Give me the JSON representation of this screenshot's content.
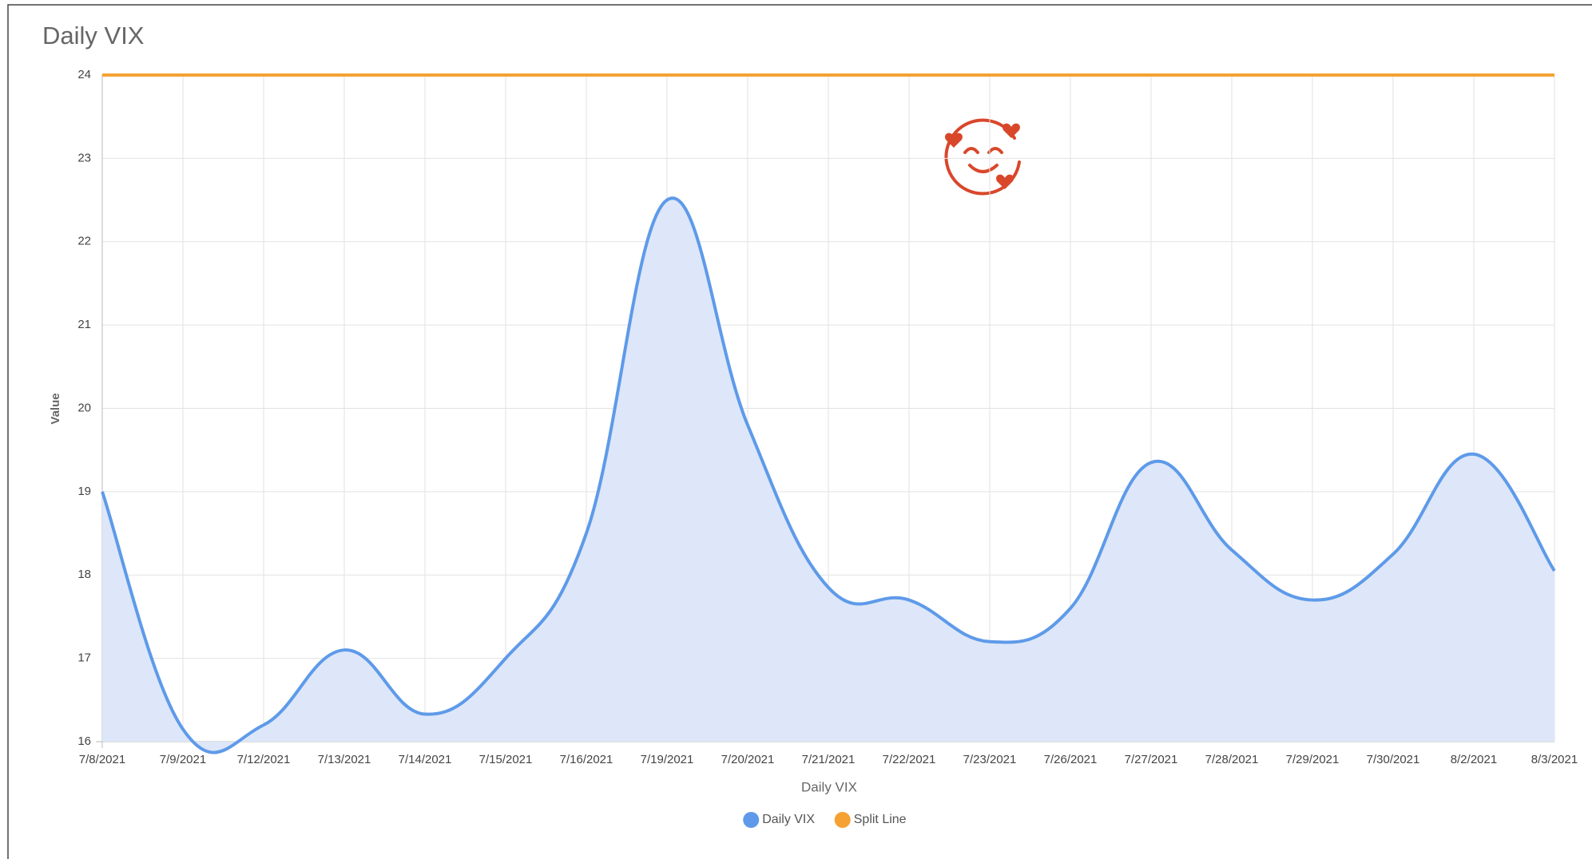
{
  "chart_data": {
    "type": "line",
    "title": "Daily VIX",
    "xlabel": "Daily VIX",
    "ylabel": "Value",
    "categories": [
      "7/8/2021",
      "7/9/2021",
      "7/12/2021",
      "7/13/2021",
      "7/14/2021",
      "7/15/2021",
      "7/16/2021",
      "7/19/2021",
      "7/20/2021",
      "7/21/2021",
      "7/22/2021",
      "7/23/2021",
      "7/26/2021",
      "7/27/2021",
      "7/28/2021",
      "7/29/2021",
      "7/30/2021",
      "8/2/2021",
      "8/3/2021"
    ],
    "series": [
      {
        "name": "Daily VIX",
        "color": "#5e9ae9",
        "fill": "#dde7f9",
        "values": [
          19.0,
          16.15,
          16.2,
          17.1,
          16.33,
          17.0,
          18.5,
          22.5,
          19.8,
          17.85,
          17.7,
          17.2,
          17.6,
          19.35,
          18.3,
          17.7,
          18.25,
          19.45,
          18.05
        ]
      },
      {
        "name": "Split Line",
        "color": "#f5a233",
        "values": [
          24,
          24,
          24,
          24,
          24,
          24,
          24,
          24,
          24,
          24,
          24,
          24,
          24,
          24,
          24,
          24,
          24,
          24,
          24
        ]
      }
    ],
    "ylim": [
      16,
      24
    ],
    "yticks": [
      16,
      17,
      18,
      19,
      20,
      21,
      22,
      23,
      24
    ],
    "grid": true,
    "legend": "bottom"
  }
}
